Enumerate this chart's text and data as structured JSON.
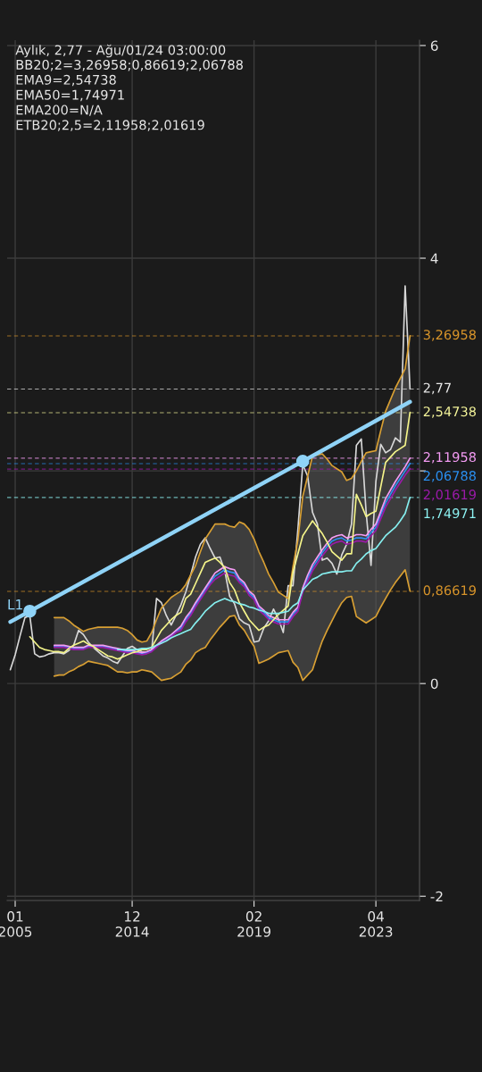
{
  "chart_data": {
    "type": "line",
    "title": "Aylık, 2,77 - Ağu/01/24 03:00:00",
    "categories": [
      null,
      "01\n2005",
      null,
      null,
      null,
      null,
      null,
      null,
      null,
      null,
      null,
      null,
      null,
      null,
      null,
      null,
      null,
      null,
      null,
      null,
      null,
      null,
      null,
      null,
      null,
      "12\n2014",
      null,
      null,
      null,
      null,
      null,
      null,
      null,
      null,
      null,
      null,
      null,
      null,
      null,
      null,
      null,
      null,
      null,
      null,
      null,
      null,
      null,
      null,
      null,
      null,
      "02\n2019",
      null,
      null,
      null,
      null,
      null,
      null,
      null,
      null,
      null,
      null,
      null,
      null,
      null,
      null,
      null,
      null,
      null,
      null,
      null,
      null,
      null,
      null,
      null,
      null,
      "04\n2023",
      null,
      null,
      null,
      null,
      null,
      null,
      null
    ],
    "ylim": [
      -2.04,
      6.05
    ],
    "yticks": [
      6,
      4,
      {
        "value": 2,
        "label": null
      },
      0,
      -2
    ],
    "grid": true,
    "marker": "none",
    "line_style": "solid",
    "series": [
      {
        "color": "#d8d8d8",
        "values": [
          0.13,
          0.27,
          0.45,
          0.62,
          0.64,
          0.28,
          0.25,
          0.26,
          0.28,
          0.29,
          0.29,
          0.28,
          0.31,
          0.36,
          0.5,
          0.46,
          0.39,
          0.34,
          0.3,
          0.26,
          0.24,
          0.21,
          0.19,
          0.26,
          0.33,
          0.35,
          0.32,
          0.3,
          0.29,
          0.31,
          0.8,
          0.76,
          0.64,
          0.55,
          0.64,
          0.74,
          0.86,
          1.02,
          1.19,
          1.31,
          1.37,
          1.27,
          1.18,
          1.19,
          1.06,
          0.82,
          0.75,
          0.61,
          0.57,
          0.55,
          0.39,
          0.4,
          0.52,
          0.59,
          0.7,
          0.61,
          0.48,
          0.92,
          0.92,
          1.45,
          2.06,
          1.95,
          1.61,
          1.5,
          1.16,
          1.18,
          1.13,
          1.03,
          1.21,
          1.31,
          1.5,
          2.24,
          2.3,
          1.61,
          1.11,
          1.9,
          2.25,
          2.17,
          2.2,
          2.31,
          2.27,
          3.74,
          2.77
        ]
      },
      {
        "color": "#2e8ef0",
        "values": [
          null,
          null,
          null,
          null,
          null,
          null,
          null,
          null,
          null,
          0.35,
          0.35,
          0.35,
          0.34,
          0.33,
          0.33,
          0.33,
          0.35,
          0.35,
          0.35,
          0.35,
          0.34,
          0.33,
          0.32,
          0.31,
          0.3,
          0.3,
          0.29,
          0.28,
          0.29,
          0.31,
          0.35,
          0.39,
          0.42,
          0.45,
          0.49,
          0.52,
          0.6,
          0.66,
          0.74,
          0.81,
          0.88,
          0.95,
          1.01,
          1.04,
          1.07,
          1.05,
          1.04,
          0.97,
          0.93,
          0.85,
          0.81,
          0.71,
          0.67,
          0.62,
          0.6,
          0.58,
          0.58,
          0.58,
          0.65,
          0.7,
          0.88,
          0.99,
          1.09,
          1.16,
          1.23,
          1.29,
          1.34,
          1.36,
          1.37,
          1.34,
          1.35,
          1.37,
          1.37,
          1.36,
          1.42,
          1.47,
          1.59,
          1.7,
          1.78,
          1.86,
          1.93,
          2.0,
          2.07
        ],
        "upper": [
          null,
          null,
          null,
          null,
          null,
          null,
          null,
          null,
          null,
          0.62,
          0.62,
          0.62,
          0.59,
          0.55,
          0.52,
          0.49,
          0.51,
          0.52,
          0.53,
          0.53,
          0.53,
          0.53,
          0.53,
          0.52,
          0.5,
          0.46,
          0.41,
          0.39,
          0.4,
          0.48,
          0.6,
          0.71,
          0.76,
          0.81,
          0.84,
          0.87,
          0.93,
          1.02,
          1.11,
          1.24,
          1.36,
          1.43,
          1.5,
          1.5,
          1.5,
          1.48,
          1.47,
          1.52,
          1.5,
          1.45,
          1.36,
          1.24,
          1.14,
          1.03,
          0.95,
          0.86,
          0.83,
          0.8,
          1.1,
          1.35,
          1.76,
          1.95,
          2.14,
          2.15,
          2.16,
          2.11,
          2.05,
          2.02,
          1.99,
          1.91,
          1.93,
          2.0,
          2.09,
          2.17,
          2.18,
          2.19,
          2.38,
          2.56,
          2.67,
          2.78,
          2.87,
          2.96,
          3.27
        ],
        "lower": [
          null,
          null,
          null,
          null,
          null,
          null,
          null,
          null,
          null,
          0.07,
          0.08,
          0.08,
          0.11,
          0.13,
          0.16,
          0.18,
          0.21,
          0.2,
          0.19,
          0.18,
          0.17,
          0.14,
          0.11,
          0.11,
          0.1,
          0.11,
          0.11,
          0.13,
          0.12,
          0.11,
          0.07,
          0.03,
          0.04,
          0.05,
          0.08,
          0.11,
          0.18,
          0.22,
          0.29,
          0.32,
          0.34,
          0.41,
          0.47,
          0.53,
          0.58,
          0.63,
          0.64,
          0.55,
          0.5,
          0.42,
          0.35,
          0.19,
          0.21,
          0.23,
          0.26,
          0.29,
          0.3,
          0.31,
          0.2,
          0.15,
          0.03,
          0.08,
          0.13,
          0.27,
          0.4,
          0.5,
          0.59,
          0.68,
          0.76,
          0.81,
          0.82,
          0.63,
          0.6,
          0.57,
          0.6,
          0.63,
          0.72,
          0.8,
          0.88,
          0.95,
          1.01,
          1.07,
          0.87
        ]
      },
      {
        "color": "#d9a033",
        "values": [
          null,
          null,
          null,
          null,
          null,
          null,
          null,
          null,
          null,
          0.62,
          0.62,
          0.62,
          0.59,
          0.55,
          0.52,
          0.49,
          0.51,
          0.52,
          0.53,
          0.53,
          0.53,
          0.53,
          0.53,
          0.52,
          0.5,
          0.46,
          0.41,
          0.39,
          0.4,
          0.48,
          0.6,
          0.71,
          0.76,
          0.81,
          0.84,
          0.87,
          0.93,
          1.02,
          1.11,
          1.24,
          1.36,
          1.43,
          1.5,
          1.5,
          1.5,
          1.48,
          1.47,
          1.52,
          1.5,
          1.45,
          1.36,
          1.24,
          1.14,
          1.03,
          0.95,
          0.86,
          0.83,
          0.8,
          1.1,
          1.35,
          1.76,
          1.95,
          2.14,
          2.15,
          2.16,
          2.11,
          2.05,
          2.02,
          1.99,
          1.91,
          1.93,
          2.0,
          2.09,
          2.17,
          2.18,
          2.19,
          2.38,
          2.56,
          2.67,
          2.78,
          2.87,
          2.96,
          3.27
        ]
      },
      {
        "color": "#d9a033",
        "values": [
          null,
          null,
          null,
          null,
          null,
          null,
          null,
          null,
          null,
          0.07,
          0.08,
          0.08,
          0.11,
          0.13,
          0.16,
          0.18,
          0.21,
          0.2,
          0.19,
          0.18,
          0.17,
          0.14,
          0.11,
          0.11,
          0.1,
          0.11,
          0.11,
          0.13,
          0.12,
          0.11,
          0.07,
          0.03,
          0.04,
          0.05,
          0.08,
          0.11,
          0.18,
          0.22,
          0.29,
          0.32,
          0.34,
          0.41,
          0.47,
          0.53,
          0.58,
          0.63,
          0.64,
          0.55,
          0.5,
          0.42,
          0.35,
          0.19,
          0.21,
          0.23,
          0.26,
          0.29,
          0.3,
          0.31,
          0.2,
          0.15,
          0.03,
          0.08,
          0.13,
          0.27,
          0.4,
          0.5,
          0.59,
          0.68,
          0.76,
          0.81,
          0.82,
          0.63,
          0.6,
          0.57,
          0.6,
          0.63,
          0.72,
          0.8,
          0.88,
          0.95,
          1.01,
          1.07,
          0.87
        ]
      },
      {
        "color": "#f59cf5",
        "values": [
          null,
          null,
          null,
          null,
          null,
          null,
          null,
          null,
          null,
          0.36,
          0.36,
          0.36,
          0.35,
          0.34,
          0.34,
          0.34,
          0.36,
          0.36,
          0.36,
          0.36,
          0.35,
          0.34,
          0.33,
          0.32,
          0.31,
          0.31,
          0.3,
          0.29,
          0.3,
          0.32,
          0.36,
          0.4,
          0.43,
          0.46,
          0.5,
          0.54,
          0.62,
          0.68,
          0.76,
          0.83,
          0.9,
          0.97,
          1.04,
          1.07,
          1.1,
          1.08,
          1.07,
          0.99,
          0.95,
          0.87,
          0.83,
          0.73,
          0.69,
          0.64,
          0.62,
          0.6,
          0.6,
          0.6,
          0.67,
          0.72,
          0.9,
          1.02,
          1.12,
          1.19,
          1.26,
          1.32,
          1.37,
          1.39,
          1.4,
          1.37,
          1.38,
          1.4,
          1.4,
          1.39,
          1.45,
          1.5,
          1.62,
          1.74,
          1.82,
          1.9,
          1.97,
          2.04,
          2.12
        ]
      },
      {
        "color": "#9a1aa8",
        "values": [
          null,
          null,
          null,
          null,
          null,
          null,
          null,
          null,
          null,
          0.34,
          0.34,
          0.34,
          0.33,
          0.32,
          0.32,
          0.32,
          0.34,
          0.34,
          0.34,
          0.34,
          0.33,
          0.32,
          0.31,
          0.3,
          0.29,
          0.29,
          0.28,
          0.27,
          0.28,
          0.3,
          0.34,
          0.38,
          0.41,
          0.44,
          0.48,
          0.5,
          0.58,
          0.64,
          0.72,
          0.79,
          0.86,
          0.93,
          0.98,
          1.01,
          1.04,
          1.02,
          1.01,
          0.95,
          0.91,
          0.83,
          0.79,
          0.69,
          0.65,
          0.6,
          0.58,
          0.56,
          0.56,
          0.56,
          0.63,
          0.68,
          0.86,
          0.96,
          1.06,
          1.13,
          1.2,
          1.26,
          1.31,
          1.33,
          1.34,
          1.31,
          1.32,
          1.34,
          1.34,
          1.33,
          1.39,
          1.44,
          1.55,
          1.66,
          1.74,
          1.82,
          1.89,
          1.96,
          2.02
        ]
      },
      {
        "color": "#f5f58a",
        "values": [
          null,
          null,
          null,
          null,
          0.44,
          0.39,
          0.34,
          0.32,
          0.31,
          0.3,
          0.3,
          0.29,
          0.33,
          0.36,
          0.38,
          0.4,
          0.37,
          0.35,
          0.32,
          0.29,
          0.26,
          0.25,
          0.23,
          0.25,
          0.27,
          0.29,
          0.3,
          0.32,
          0.32,
          0.34,
          0.42,
          0.5,
          0.55,
          0.6,
          0.64,
          0.67,
          0.8,
          0.84,
          0.94,
          1.04,
          1.14,
          1.16,
          1.18,
          1.14,
          1.09,
          0.95,
          0.88,
          0.76,
          0.68,
          0.6,
          0.55,
          0.5,
          0.53,
          0.55,
          0.6,
          0.65,
          0.69,
          0.73,
          1.05,
          1.22,
          1.39,
          1.46,
          1.53,
          1.47,
          1.41,
          1.33,
          1.24,
          1.2,
          1.16,
          1.22,
          1.22,
          1.78,
          1.68,
          1.57,
          1.6,
          1.62,
          1.85,
          2.08,
          2.13,
          2.18,
          2.21,
          2.24,
          2.55
        ]
      },
      {
        "color": "#86f0f0",
        "values": [
          null,
          null,
          null,
          null,
          null,
          null,
          null,
          null,
          null,
          null,
          null,
          null,
          null,
          null,
          null,
          null,
          null,
          null,
          null,
          null,
          null,
          null,
          0.32,
          0.32,
          0.32,
          0.32,
          0.32,
          0.33,
          0.33,
          0.34,
          0.36,
          0.38,
          0.4,
          0.43,
          0.45,
          0.47,
          0.49,
          0.51,
          0.57,
          0.62,
          0.68,
          0.72,
          0.76,
          0.78,
          0.8,
          0.78,
          0.77,
          0.75,
          0.74,
          0.72,
          0.71,
          0.69,
          0.68,
          0.66,
          0.66,
          0.66,
          0.67,
          0.68,
          0.73,
          0.76,
          0.88,
          0.93,
          0.98,
          1.0,
          1.03,
          1.04,
          1.05,
          1.05,
          1.05,
          1.06,
          1.06,
          1.13,
          1.17,
          1.22,
          1.25,
          1.27,
          1.33,
          1.39,
          1.43,
          1.47,
          1.53,
          1.6,
          1.75
        ]
      },
      {
        "color": "#8fd3f7",
        "values": [
          0.58,
          null,
          null,
          null,
          0.68,
          null,
          null,
          null,
          null,
          null,
          null,
          null,
          null,
          null,
          null,
          null,
          null,
          null,
          null,
          null,
          null,
          null,
          null,
          null,
          null,
          null,
          null,
          null,
          null,
          null,
          null,
          null,
          null,
          null,
          null,
          null,
          null,
          null,
          null,
          null,
          null,
          null,
          null,
          null,
          null,
          null,
          null,
          null,
          null,
          null,
          null,
          null,
          null,
          null,
          null,
          null,
          null,
          null,
          null,
          null,
          2.09,
          null,
          null,
          null,
          null,
          null,
          null,
          null,
          null,
          null,
          null,
          null,
          null,
          null,
          null,
          null,
          null,
          null,
          null,
          null,
          null,
          null,
          2.65
        ]
      },
      {
        "type": "scatter",
        "color": "#8fd3f7",
        "marker": "circle",
        "values": [
          null,
          null,
          null,
          null,
          0.68,
          null,
          null,
          null,
          null,
          null,
          null,
          null,
          null,
          null,
          null,
          null,
          null,
          null,
          null,
          null,
          null,
          null,
          null,
          null,
          null,
          null,
          null,
          null,
          null,
          null,
          null,
          null,
          null,
          null,
          null,
          null,
          null,
          null,
          null,
          null,
          null,
          null,
          null,
          null,
          null,
          null,
          null,
          null,
          null,
          null,
          null,
          null,
          null,
          null,
          null,
          null,
          null,
          null,
          null,
          null,
          2.09,
          null,
          null,
          null,
          null,
          null,
          null,
          null,
          null,
          null,
          null,
          null,
          null,
          null,
          null,
          null,
          null,
          null,
          null,
          null,
          null,
          null,
          null
        ]
      }
    ],
    "ref_lines": [
      {
        "axis": "y",
        "value": 3.26958,
        "label": "3,26958",
        "color": "#d9952a",
        "line_style": "dashed"
      },
      {
        "axis": "y",
        "value": 2.77,
        "label": "2,77",
        "color": "#e8e8e8",
        "line_style": "dashed"
      },
      {
        "axis": "y",
        "value": 2.54738,
        "label": "2,54738",
        "color": "#f5f59a",
        "line_style": "dashed"
      },
      {
        "axis": "y",
        "value": 2.11958,
        "label": "2,11958",
        "color": "#f59cf5",
        "line_style": "dashed"
      },
      {
        "axis": "y",
        "value": 2.06788,
        "label": "2,06788",
        "color": "#2a8ff0",
        "line_style": "dashed"
      },
      {
        "axis": "y",
        "value": 2.01619,
        "label": "2,01619",
        "color": "#9a1aa8",
        "line_style": "dashed"
      },
      {
        "axis": "y",
        "value": 1.74971,
        "label": "1,74971",
        "color": "#8ff5f5",
        "line_style": "dashed"
      },
      {
        "axis": "y",
        "value": 0.86619,
        "label": "0,86619",
        "color": "#d9952a",
        "line_style": "dashed"
      }
    ],
    "annotations": [
      "BB20;2=3,26958;0,86619;2,06788",
      "EMA9=2,54738",
      "EMA50=1,74971",
      "EMA200=N/A",
      "ETB20;2,5=2,11958;2,01619",
      {
        "text": "L1",
        "y": 0.67
      }
    ]
  }
}
